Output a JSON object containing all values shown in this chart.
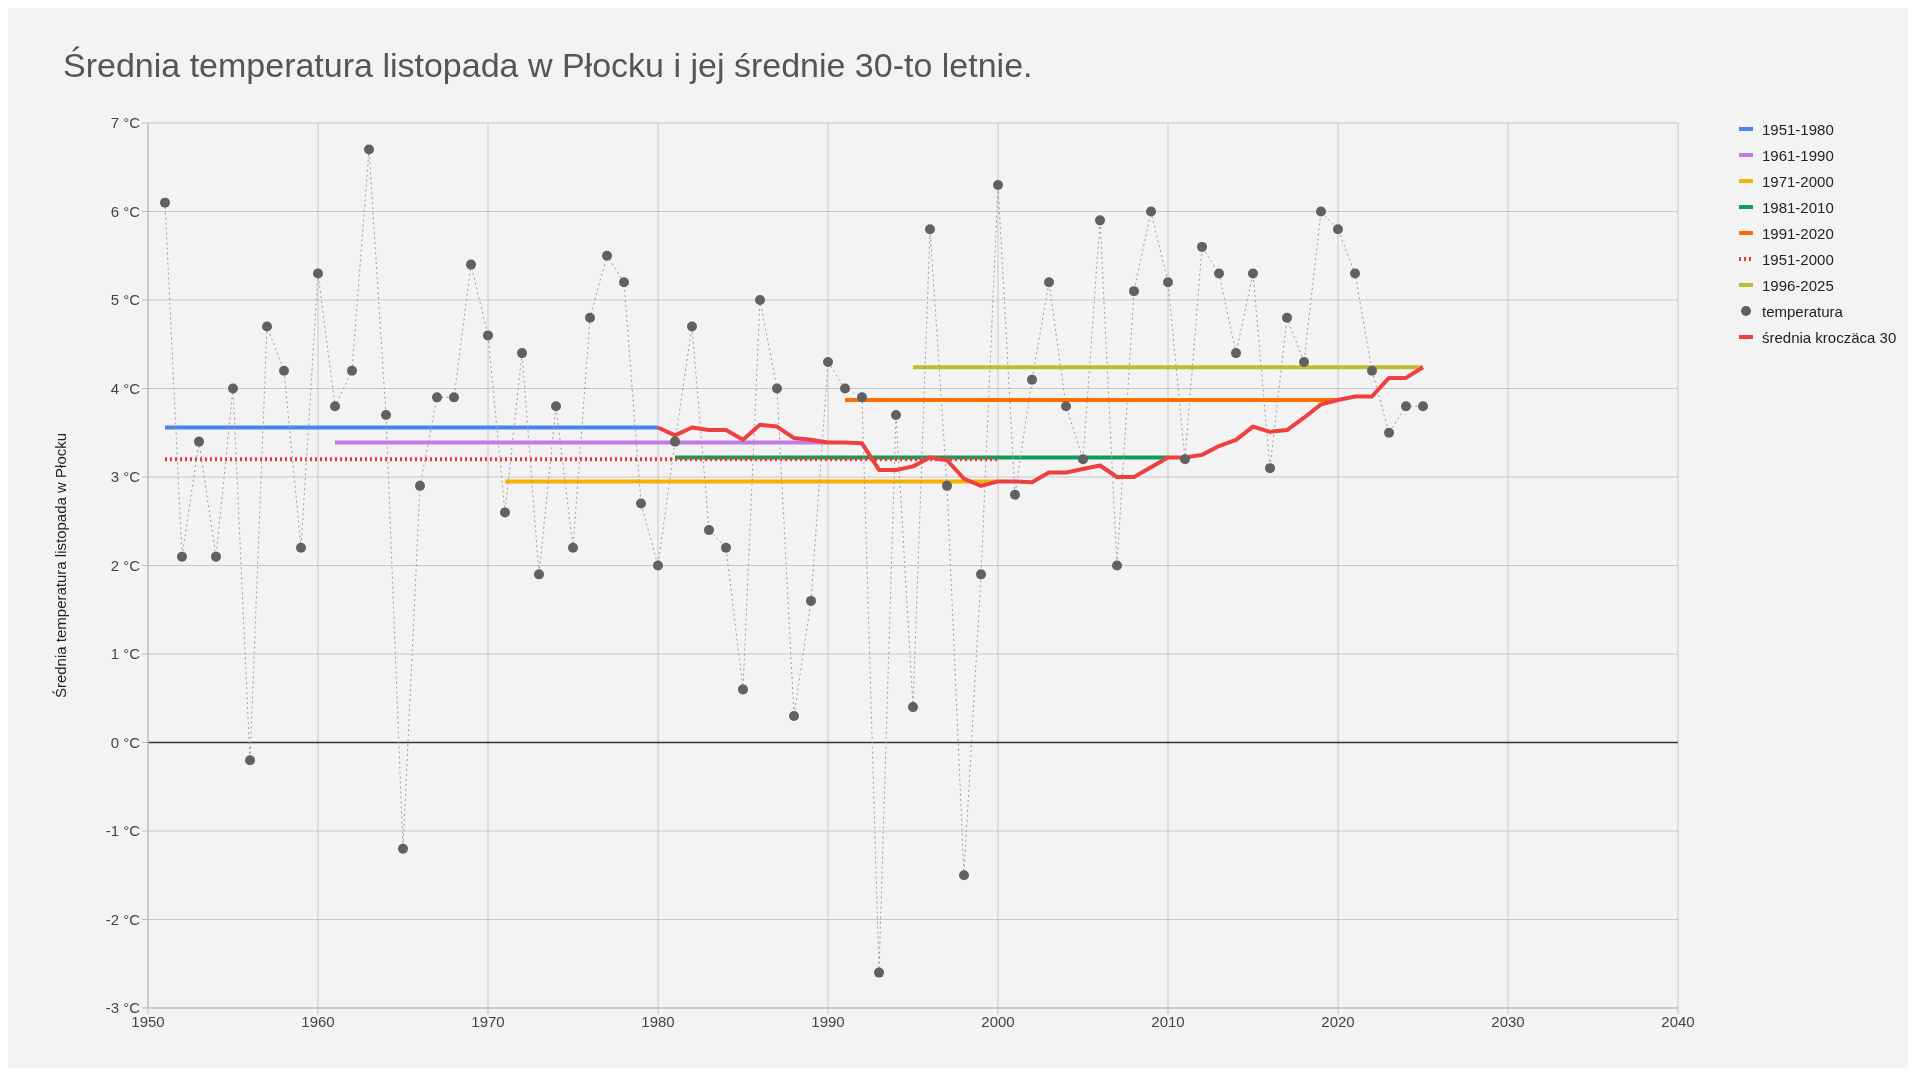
{
  "chart_data": {
    "type": "line",
    "title": "Średnia temperatura listopada w Płocku i jej średnie 30-to letnie.",
    "ylabel": "Średnia temperatura listopada w Płocku",
    "xlim": [
      1950,
      2040
    ],
    "xticks": [
      1950,
      1960,
      1970,
      1980,
      1990,
      2000,
      2010,
      2020,
      2030,
      2040
    ],
    "ylim": [
      -3,
      7
    ],
    "yticks": [
      {
        "value": -3,
        "label": "-3 °C"
      },
      {
        "value": -2,
        "label": "-2 °C"
      },
      {
        "value": -1,
        "label": "-1 °C"
      },
      {
        "value": 0,
        "label": "0 °C"
      },
      {
        "value": 1,
        "label": "1 °C"
      },
      {
        "value": 2,
        "label": "2 °C"
      },
      {
        "value": 3,
        "label": "3 °C"
      },
      {
        "value": 4,
        "label": "4 °C"
      },
      {
        "value": 5,
        "label": "5 °C"
      },
      {
        "value": 6,
        "label": "6 °C"
      },
      {
        "value": 7,
        "label": "7 °C"
      }
    ],
    "grid": true,
    "legend": "top right",
    "ref_lines": [
      {
        "axis": "y",
        "value": 0,
        "color": "#333333"
      }
    ],
    "series": [
      {
        "name": "1951-1980",
        "color": "#4a86e8",
        "x": [
          1951,
          1980
        ],
        "values": [
          3.56,
          3.56
        ]
      },
      {
        "name": "1961-1990",
        "color": "#c27be6",
        "x": [
          1961,
          1990
        ],
        "values": [
          3.39,
          3.39
        ]
      },
      {
        "name": "1971-2000",
        "color": "#f1b400",
        "x": [
          1971,
          2000
        ],
        "values": [
          2.95,
          2.95
        ]
      },
      {
        "name": "1981-2010",
        "color": "#0f9d58",
        "x": [
          1981,
          2010
        ],
        "values": [
          3.22,
          3.22
        ]
      },
      {
        "name": "1991-2020",
        "color": "#ff6d00",
        "x": [
          1991,
          2020
        ],
        "values": [
          3.87,
          3.87
        ]
      },
      {
        "name": "1951-2000",
        "color": "#ea3a32",
        "line_style": "dotted",
        "x": [
          1951,
          2000
        ],
        "values": [
          3.2,
          3.2
        ]
      },
      {
        "name": "1996-2025",
        "color": "#bfbf2c",
        "x": [
          1995,
          2025
        ],
        "values": [
          4.24,
          4.24
        ]
      },
      {
        "name": "temperatura",
        "color": "#616161",
        "marker": "circle",
        "line_style": "dotted",
        "x": [
          1951,
          1952,
          1953,
          1954,
          1955,
          1956,
          1957,
          1958,
          1959,
          1960,
          1961,
          1962,
          1963,
          1964,
          1965,
          1966,
          1967,
          1968,
          1969,
          1970,
          1971,
          1972,
          1973,
          1974,
          1975,
          1976,
          1977,
          1978,
          1979,
          1980,
          1981,
          1982,
          1983,
          1984,
          1985,
          1986,
          1987,
          1988,
          1989,
          1990,
          1991,
          1992,
          1993,
          1994,
          1995,
          1996,
          1997,
          1998,
          1999,
          2000,
          2001,
          2002,
          2003,
          2004,
          2005,
          2006,
          2007,
          2008,
          2009,
          2010,
          2011,
          2012,
          2013,
          2014,
          2015,
          2016,
          2017,
          2018,
          2019,
          2020,
          2021,
          2022,
          2023,
          2024,
          2025
        ],
        "values": [
          6.1,
          2.1,
          3.4,
          2.1,
          4.0,
          -0.2,
          4.7,
          4.2,
          2.2,
          5.3,
          3.8,
          4.2,
          6.7,
          3.7,
          -1.2,
          2.9,
          3.9,
          3.9,
          5.4,
          4.6,
          2.6,
          4.4,
          1.9,
          3.8,
          2.2,
          4.8,
          5.5,
          5.2,
          2.7,
          2.0,
          3.4,
          4.7,
          2.4,
          2.2,
          0.6,
          5.0,
          4.0,
          0.3,
          1.6,
          4.3,
          4.0,
          3.9,
          -2.6,
          3.7,
          0.4,
          5.8,
          2.9,
          -1.5,
          1.9,
          6.3,
          2.8,
          4.1,
          5.2,
          3.8,
          3.2,
          5.9,
          2.0,
          5.1,
          6.0,
          5.2,
          3.2,
          5.6,
          5.3,
          4.4,
          5.3,
          3.1,
          4.8,
          4.3,
          6.0,
          5.8,
          5.3,
          4.2,
          3.5,
          3.8,
          3.8
        ]
      },
      {
        "name": "średnia kroczäca 30",
        "color": "#ee4040",
        "x": [
          1980,
          1981,
          1982,
          1983,
          1984,
          1985,
          1986,
          1987,
          1988,
          1989,
          1990,
          1991,
          1992,
          1993,
          1994,
          1995,
          1996,
          1997,
          1998,
          1999,
          2000,
          2001,
          2002,
          2003,
          2004,
          2005,
          2006,
          2007,
          2008,
          2009,
          2010,
          2011,
          2012,
          2013,
          2014,
          2015,
          2016,
          2017,
          2018,
          2019,
          2020,
          2021,
          2022,
          2023,
          2024,
          2025
        ],
        "values": [
          3.56,
          3.47,
          3.56,
          3.53,
          3.53,
          3.42,
          3.59,
          3.57,
          3.44,
          3.42,
          3.39,
          3.39,
          3.38,
          3.08,
          3.08,
          3.12,
          3.22,
          3.19,
          2.98,
          2.9,
          2.95,
          2.95,
          2.94,
          3.05,
          3.05,
          3.09,
          3.13,
          3.0,
          3.0,
          3.11,
          3.22,
          3.22,
          3.25,
          3.35,
          3.42,
          3.57,
          3.51,
          3.53,
          3.67,
          3.82,
          3.87,
          3.91,
          3.91,
          4.12,
          4.12,
          4.24
        ]
      }
    ]
  }
}
